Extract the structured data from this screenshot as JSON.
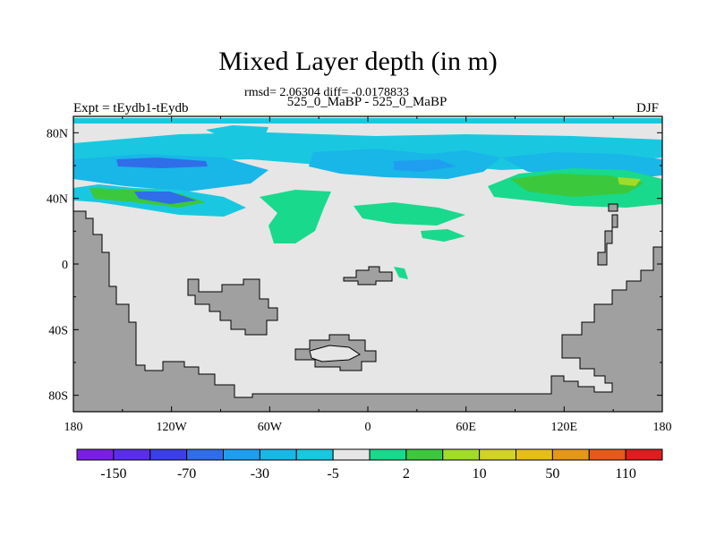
{
  "chart_data": {
    "type": "heatmap",
    "title": "Mixed Layer depth (in m)",
    "stats_line": "rmsd= 2.06304 diff= -0.0178833",
    "subtitle": "525_0_MaBP - 525_0_MaBP",
    "left_label": "Expt = tEydb1-tEydb",
    "right_label": "DJF",
    "x_ticks": [
      "180",
      "120W",
      "60W",
      "0",
      "60E",
      "120E",
      "180"
    ],
    "x_tick_values": [
      -180,
      -120,
      -60,
      0,
      60,
      120,
      180
    ],
    "y_ticks": [
      "80N",
      "40N",
      "0",
      "40S",
      "80S"
    ],
    "y_tick_values": [
      80,
      40,
      0,
      -40,
      -80
    ],
    "xlim": [
      -180,
      180
    ],
    "ylim": [
      -90,
      90
    ],
    "colorbar": {
      "colors": [
        "#7a1fe0",
        "#5a2ee8",
        "#3b3fe6",
        "#2f6ee8",
        "#1f9ef0",
        "#19b6e8",
        "#19c8e0",
        "#e6e6e6",
        "#19d98c",
        "#3cc83c",
        "#a0dc28",
        "#d2d228",
        "#e6be19",
        "#e69619",
        "#e65a19",
        "#dc1e1e"
      ],
      "labels": [
        "-150",
        "-70",
        "-30",
        "-5",
        "2",
        "10",
        "50",
        "110"
      ]
    },
    "land_color": "#a0a0a0",
    "ocean_color": "#e6e6e6"
  }
}
